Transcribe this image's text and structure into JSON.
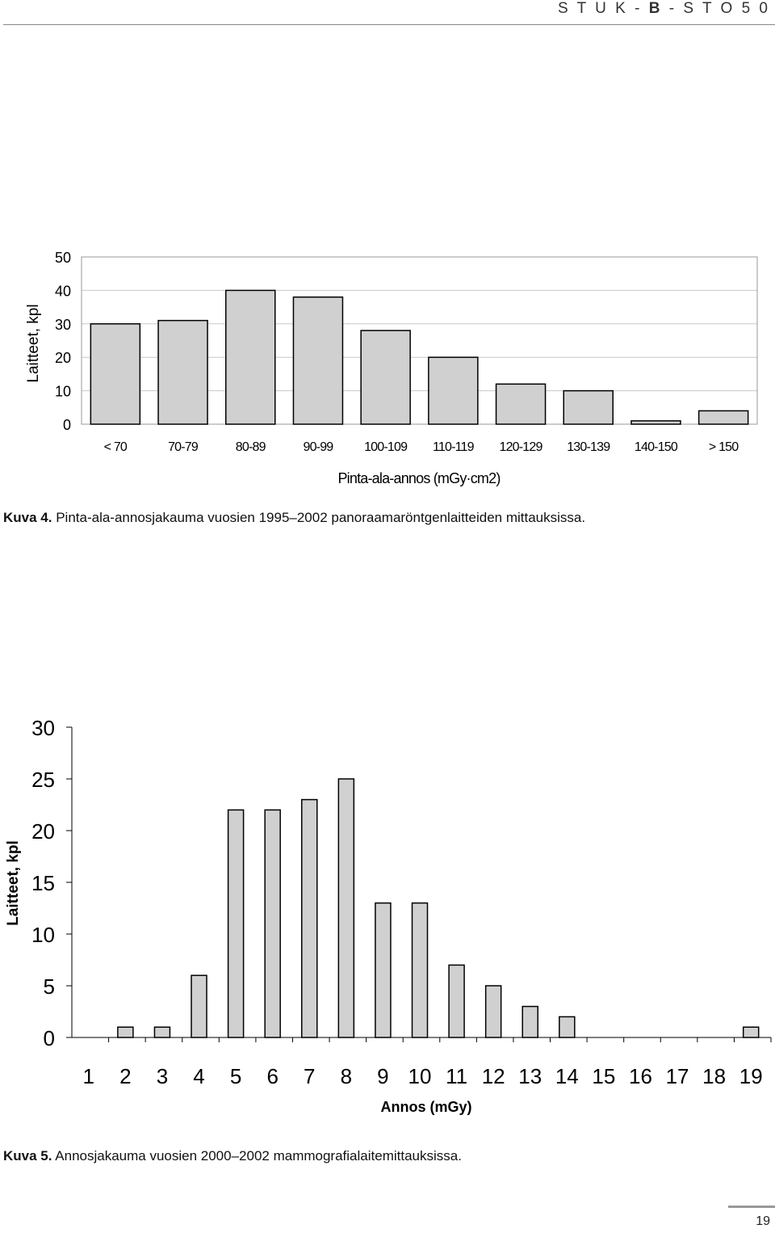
{
  "header": {
    "prefix": "S T U K - ",
    "bold": "B",
    "suffix": " - S T O 5 0"
  },
  "colors": {
    "bar_fill": "#d0d0d0",
    "bar_stroke": "#000000",
    "grid": "#c8c8c8"
  },
  "figure1": {
    "caption_label": "Kuva 4.",
    "caption_text": " Pinta-ala-annosjakauma vuosien 1995–2002 panoraamaröntgenlaitteiden mittauksissa."
  },
  "figure2": {
    "caption_label": "Kuva 5.",
    "caption_text": " Annosjakauma vuosien 2000–2002 mammografialaitemittauksissa."
  },
  "page_number": "19",
  "chart_data": [
    {
      "type": "bar",
      "categories": [
        "< 70",
        "70-79",
        "80-89",
        "90-99",
        "100-109",
        "110-119",
        "120-129",
        "130-139",
        "140-150",
        "> 150"
      ],
      "values": [
        30,
        31,
        40,
        38,
        28,
        20,
        12,
        10,
        1,
        4
      ],
      "xlabel": "Pinta-ala-annos (mGy·cm2)",
      "ylabel": "Laitteet, kpl",
      "ylim": [
        0,
        50
      ],
      "yticks": [
        "0",
        "10",
        "20",
        "30",
        "40",
        "50"
      ],
      "grid": true,
      "legend": "none"
    },
    {
      "type": "bar",
      "categories": [
        "1",
        "2",
        "3",
        "4",
        "5",
        "6",
        "7",
        "8",
        "9",
        "10",
        "11",
        "12",
        "13",
        "14",
        "15",
        "16",
        "17",
        "18",
        "19"
      ],
      "values": [
        0,
        1,
        1,
        6,
        22,
        22,
        23,
        25,
        13,
        13,
        7,
        5,
        3,
        2,
        0,
        0,
        0,
        0,
        1
      ],
      "xlabel": "Annos (mGy)",
      "ylabel": "Laitteet, kpl",
      "ylim": [
        0,
        30
      ],
      "yticks": [
        "0",
        "5",
        "10",
        "15",
        "20",
        "25",
        "30"
      ],
      "grid": false,
      "legend": "none"
    }
  ]
}
